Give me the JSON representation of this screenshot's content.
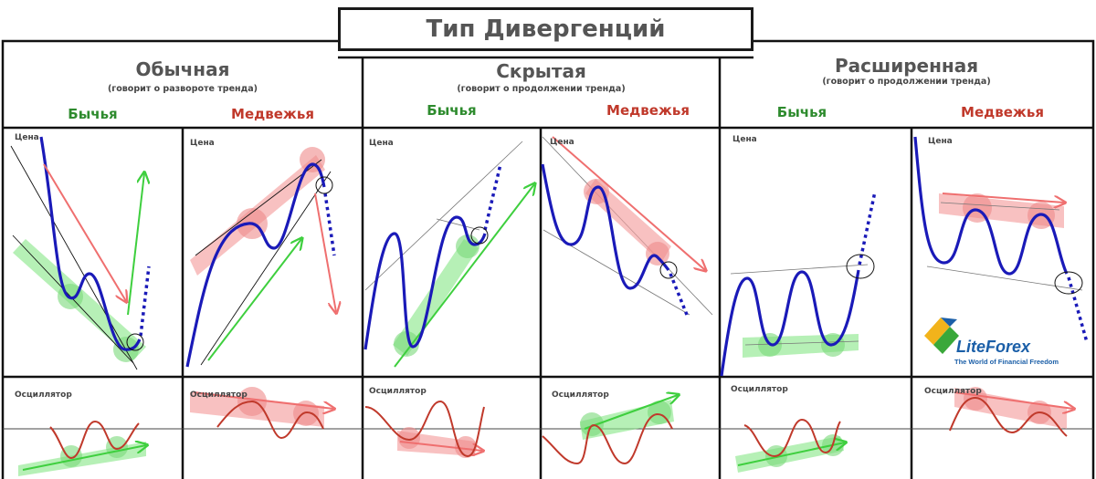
{
  "title": "Тип Дивергенций",
  "sections": [
    {
      "title": "Обычная",
      "subtitle": "(говорит о развороте тренда)",
      "bull": "Бычья",
      "bear": "Медвежья"
    },
    {
      "title": "Скрытая",
      "subtitle": "(говорит о продолжении тренда)",
      "bull": "Бычья",
      "bear": "Медвежья"
    },
    {
      "title": "Расширенная",
      "subtitle": "(говорит о продолжении тренда)",
      "bull": "Бычья",
      "bear": "Медвежья"
    }
  ],
  "price_label": "Цена",
  "oscillator_label": "Осциллятор",
  "logo": {
    "name": "LiteForex",
    "tagline": "The World of Financial Freedom"
  },
  "colors": {
    "price_line": "#1a1ab8",
    "oscillator_line": "#c0392b",
    "bull": "#2e8b2e",
    "bear": "#c0392b",
    "bull_zone": "#8fe88f",
    "bear_zone": "#f5a0a0"
  }
}
